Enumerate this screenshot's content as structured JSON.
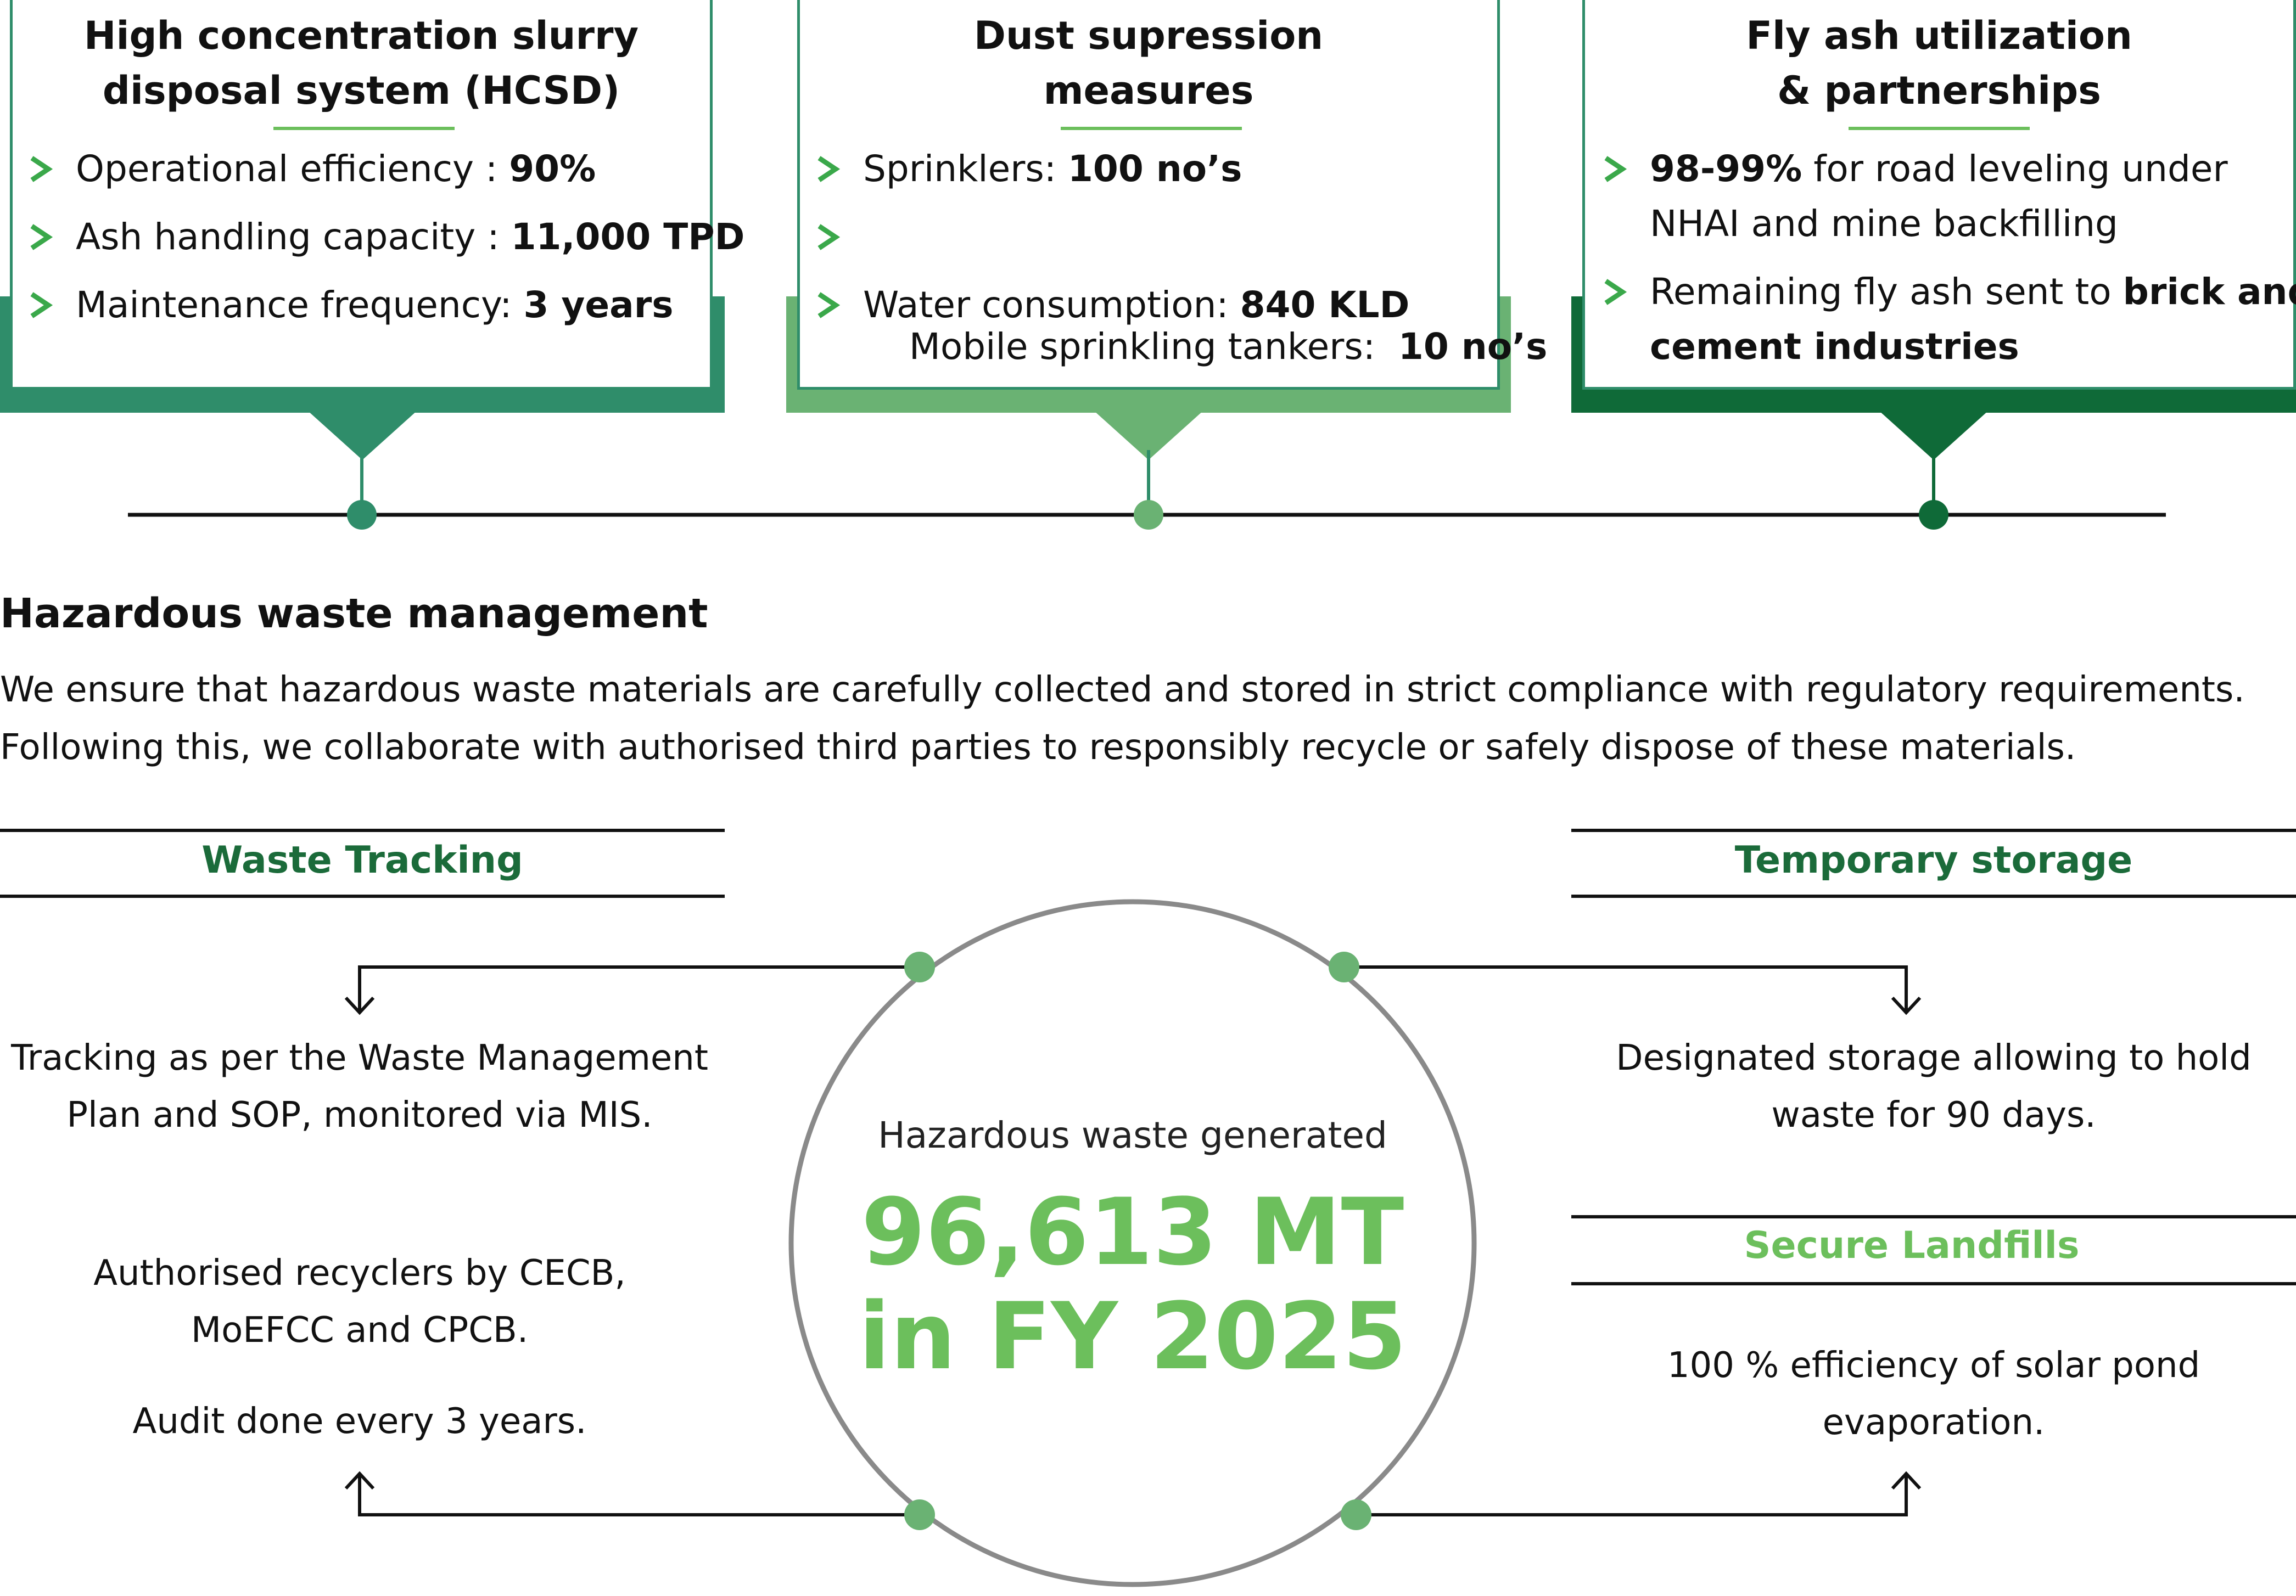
{
  "colors": {
    "card1": "#2f8d6a",
    "card2": "#6ab273",
    "card3": "#0f6a38",
    "accent_green": "#6cbf5c",
    "dark_green": "#1b6b3a",
    "light_green": "#6cbf5c"
  },
  "cards": [
    {
      "title_line1": "High concentration slurry",
      "title_line2": "disposal system (HCSD)",
      "bullets": [
        {
          "label": "Operational efficiency : ",
          "value": "90%"
        },
        {
          "label": "Ash handling capacity : ",
          "value": "11,000 TPD"
        },
        {
          "label": "Maintenance frequency: ",
          "value": "3 years"
        }
      ]
    },
    {
      "title_line1": "Dust supression",
      "title_line2": "measures",
      "bullets": [
        {
          "label": "Sprinklers: ",
          "value": "100 no’s"
        },
        {
          "label": "Mobile sprinkling tankers:  ",
          "value": "10 no’s"
        },
        {
          "label": "Water consumption: ",
          "value": "840 KLD"
        }
      ]
    },
    {
      "title_line1": "Fly ash utilization",
      "title_line2": "& partnerships",
      "bullet1": {
        "bold": "98-99%",
        "rest_line1": " for road leveling under",
        "line2": "NHAI and mine backfilling"
      },
      "bullet2": {
        "line1_plain": "Remaining fly ash sent to ",
        "line1_bold": "brick and",
        "line2_bold": "cement industries"
      }
    }
  ],
  "hazardous": {
    "title": "Hazardous waste management",
    "body_line1": "We ensure that hazardous waste materials are carefully collected and stored in strict compliance with regulatory requirements.",
    "body_line2": "Following this, we collaborate with authorised third parties to responsibly recycle or safely dispose of these materials."
  },
  "waste_tracking": {
    "heading": "Waste Tracking",
    "line1": "Tracking as per the Waste Management",
    "line2": "Plan and SOP, monitored via MIS."
  },
  "recyclers": {
    "line1": "Authorised recyclers by CECB,",
    "line2": "MoEFCC and CPCB.",
    "line3": "Audit done every 3 years."
  },
  "temporary_storage": {
    "heading": "Temporary storage",
    "line1": "Designated storage allowing to hold",
    "line2": "waste for 90 days."
  },
  "secure_landfills": {
    "heading": "Secure Landfills",
    "line1": "100 % efficiency of solar pond",
    "line2": "evaporation."
  },
  "center": {
    "label": "Hazardous waste generated",
    "value_line1": "96,613 MT",
    "value_line2": "in FY 2025"
  }
}
